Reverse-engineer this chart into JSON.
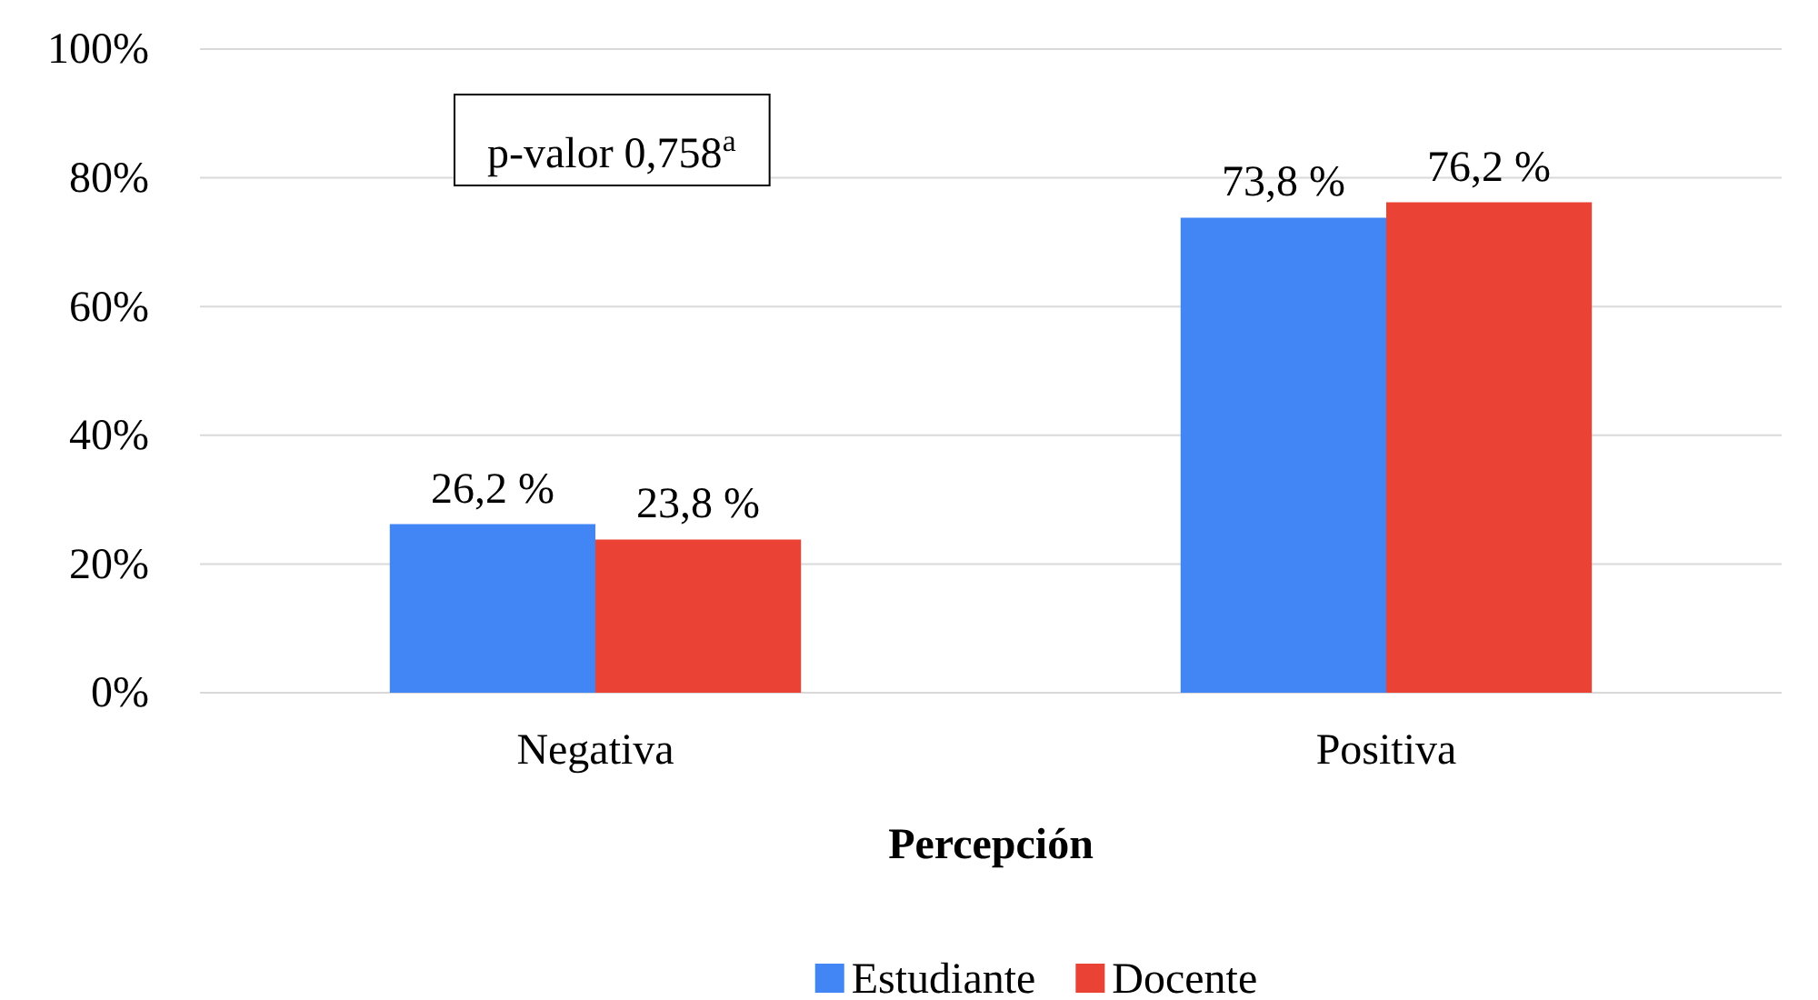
{
  "chart_data": {
    "type": "bar",
    "xlabel": "Percepción",
    "categories": [
      "Negativa",
      "Positiva"
    ],
    "series": [
      {
        "name": "Estudiante",
        "color": "#4285f4",
        "values": [
          26.2,
          73.8
        ],
        "value_labels": [
          "26,2 %",
          "73,8 %"
        ]
      },
      {
        "name": "Docente",
        "color": "#ea4335",
        "values": [
          23.8,
          76.2
        ],
        "value_labels": [
          "23,8 %",
          "76,2 %"
        ]
      }
    ],
    "ylim": [
      0,
      100
    ],
    "yticks": [
      {
        "value": 0,
        "label": "0%"
      },
      {
        "value": 20,
        "label": "20%"
      },
      {
        "value": 40,
        "label": "40%"
      },
      {
        "value": 60,
        "label": "60%"
      },
      {
        "value": 80,
        "label": "80%"
      },
      {
        "value": 100,
        "label": "100%"
      }
    ],
    "grid": "y",
    "legend": "bottom",
    "annotations": [
      "p-valor 0,758$^{a}$"
    ]
  }
}
